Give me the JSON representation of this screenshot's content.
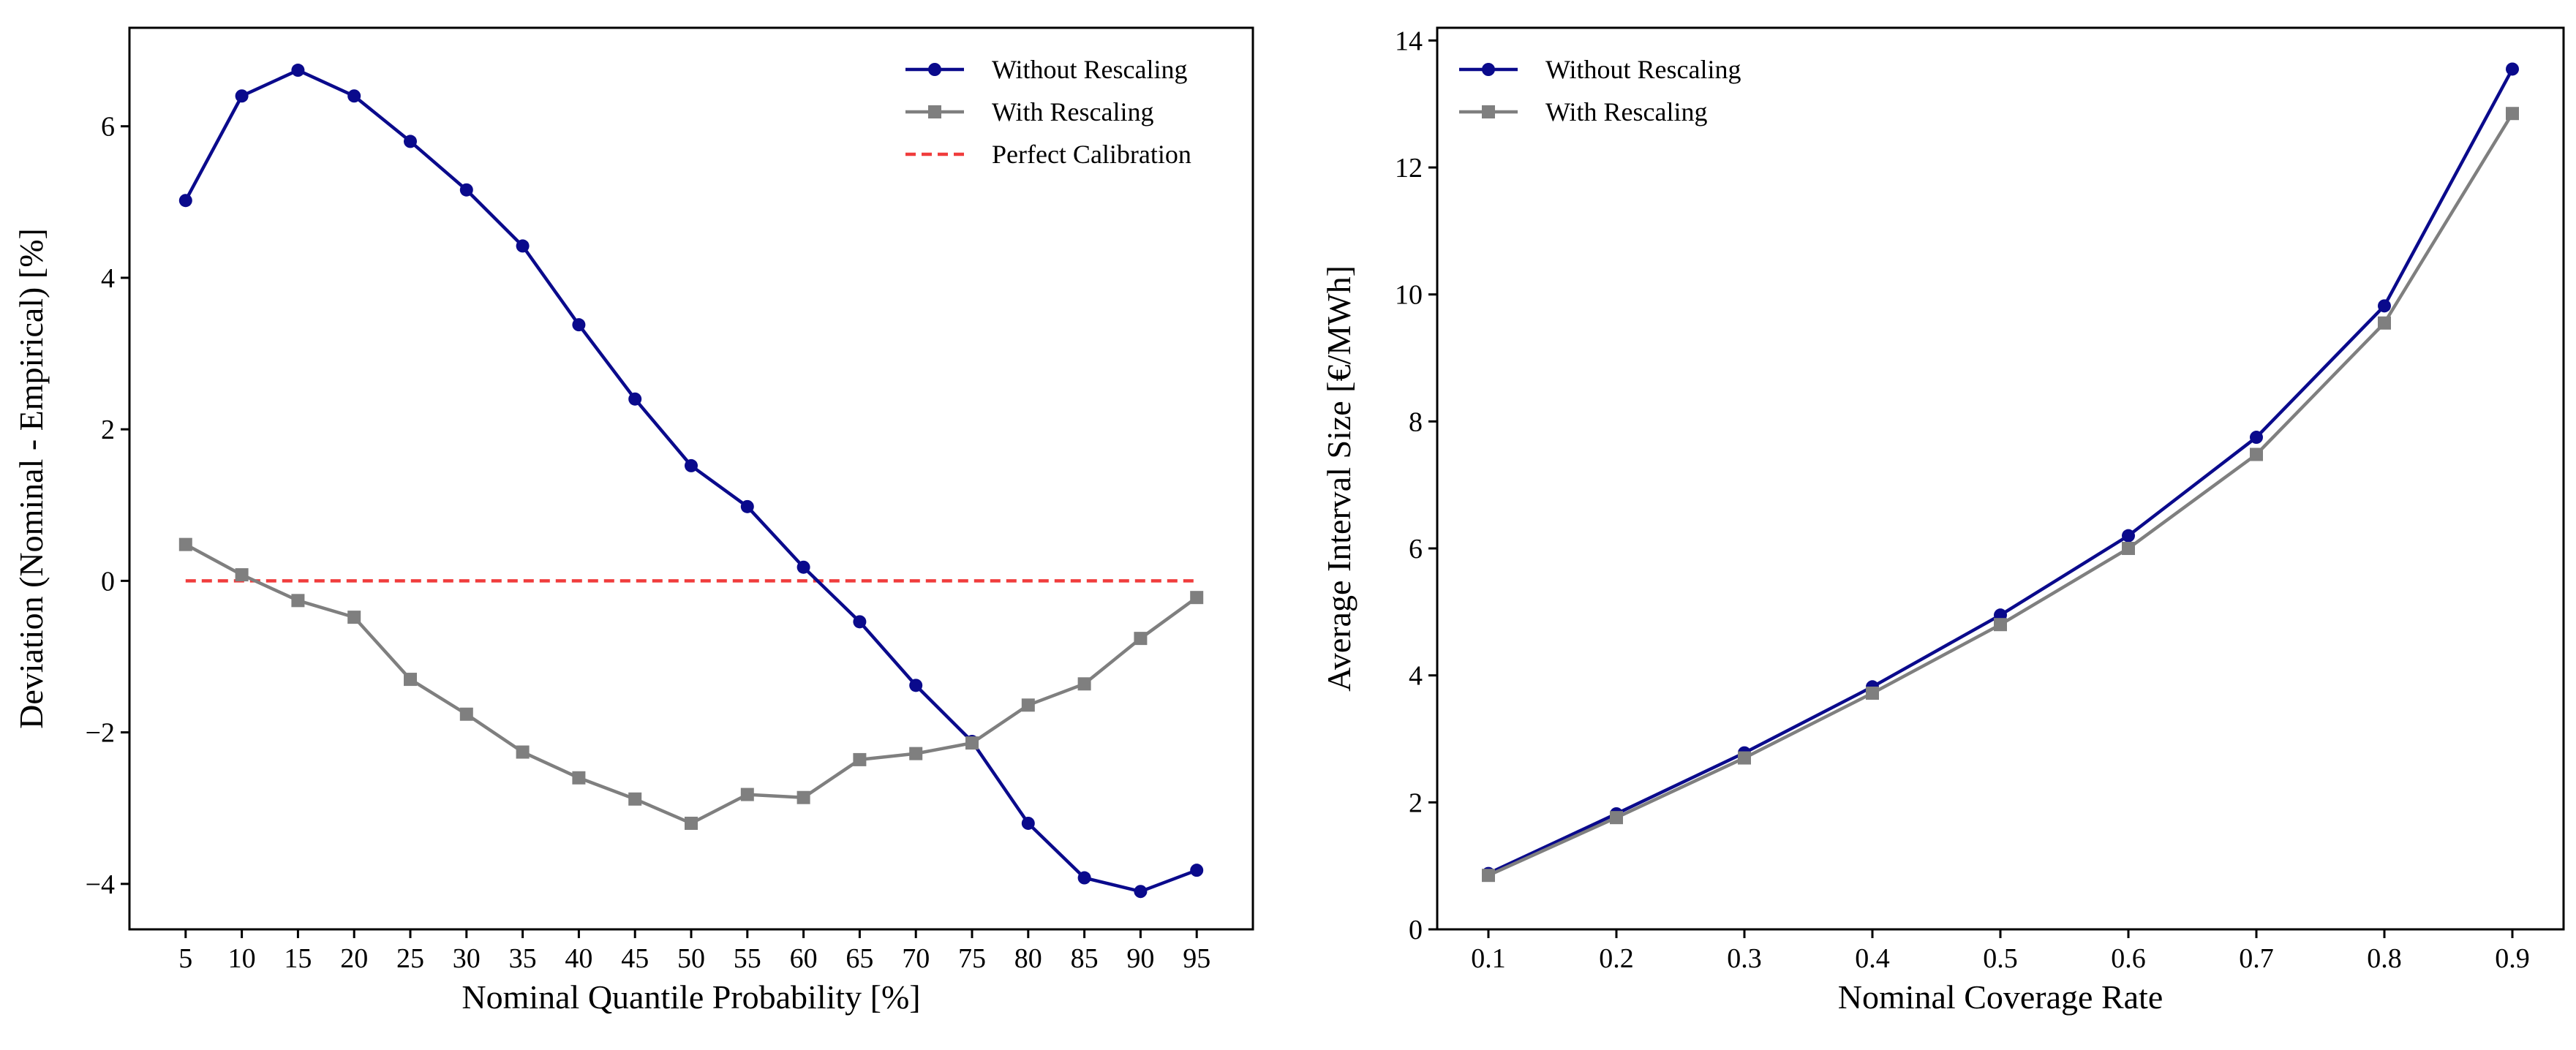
{
  "colors": {
    "without": "#0a0a8c",
    "with": "#7f7f7f",
    "perfect": "#f03c3c",
    "axes": "#000000"
  },
  "chart_data": [
    {
      "type": "line",
      "xlabel": "Nominal Quantile Probability [%]",
      "ylabel": "Deviation (Nominal - Empirical) [%]",
      "xlim": [
        0,
        100
      ],
      "ylim": [
        -4.6,
        7.3
      ],
      "x_ticks": [
        5,
        10,
        15,
        20,
        25,
        30,
        35,
        40,
        45,
        50,
        55,
        60,
        65,
        70,
        75,
        80,
        85,
        90,
        95
      ],
      "x_tick_labels": [
        "5",
        "10",
        "15",
        "20",
        "25",
        "30",
        "35",
        "40",
        "45",
        "50",
        "55",
        "60",
        "65",
        "70",
        "75",
        "80",
        "85",
        "90",
        "95"
      ],
      "y_ticks": [
        -4,
        -2,
        0,
        2,
        4,
        6
      ],
      "y_tick_labels": [
        "−4",
        "−2",
        "0",
        "2",
        "4",
        "6"
      ],
      "legend_position": "top-right",
      "x": [
        5,
        10,
        15,
        20,
        25,
        30,
        35,
        40,
        45,
        50,
        55,
        60,
        65,
        70,
        75,
        80,
        85,
        90,
        95
      ],
      "series": [
        {
          "name": "Without Rescaling",
          "marker": "circle",
          "values": [
            5.02,
            6.4,
            6.74,
            6.4,
            5.8,
            5.16,
            4.42,
            3.38,
            2.4,
            1.52,
            0.98,
            0.18,
            -0.54,
            -1.38,
            -2.12,
            -3.2,
            -3.92,
            -4.1,
            -3.82
          ]
        },
        {
          "name": "With Rescaling",
          "marker": "square",
          "values": [
            0.48,
            0.08,
            -0.26,
            -0.48,
            -1.3,
            -1.76,
            -2.26,
            -2.6,
            -2.88,
            -3.2,
            -2.82,
            -2.86,
            -2.36,
            -2.28,
            -2.14,
            -1.64,
            -1.36,
            -0.76,
            -0.22
          ]
        },
        {
          "name": "Perfect Calibration",
          "marker": "none",
          "style": "dashed",
          "values": [
            0,
            0,
            0,
            0,
            0,
            0,
            0,
            0,
            0,
            0,
            0,
            0,
            0,
            0,
            0,
            0,
            0,
            0,
            0
          ]
        }
      ]
    },
    {
      "type": "line",
      "xlabel": "Nominal Coverage Rate",
      "ylabel": "Average Interval Size [€/MWh]",
      "xlim": [
        0.06,
        0.94
      ],
      "ylim": [
        0,
        14.2
      ],
      "x_ticks": [
        0.1,
        0.2,
        0.3,
        0.4,
        0.5,
        0.6,
        0.7,
        0.8,
        0.9
      ],
      "x_tick_labels": [
        "0.1",
        "0.2",
        "0.3",
        "0.4",
        "0.5",
        "0.6",
        "0.7",
        "0.8",
        "0.9"
      ],
      "y_ticks": [
        0,
        2,
        4,
        6,
        8,
        10,
        12,
        14
      ],
      "y_tick_labels": [
        "0",
        "2",
        "4",
        "6",
        "8",
        "10",
        "12",
        "14"
      ],
      "legend_position": "top-left",
      "x": [
        0.1,
        0.2,
        0.3,
        0.4,
        0.5,
        0.6,
        0.7,
        0.8,
        0.9
      ],
      "series": [
        {
          "name": "Without Rescaling",
          "marker": "circle",
          "values": [
            0.88,
            1.82,
            2.78,
            3.82,
            4.95,
            6.2,
            7.75,
            9.82,
            13.55
          ]
        },
        {
          "name": "With Rescaling",
          "marker": "square",
          "values": [
            0.85,
            1.76,
            2.7,
            3.72,
            4.8,
            6.0,
            7.48,
            9.55,
            12.85
          ]
        }
      ]
    }
  ]
}
